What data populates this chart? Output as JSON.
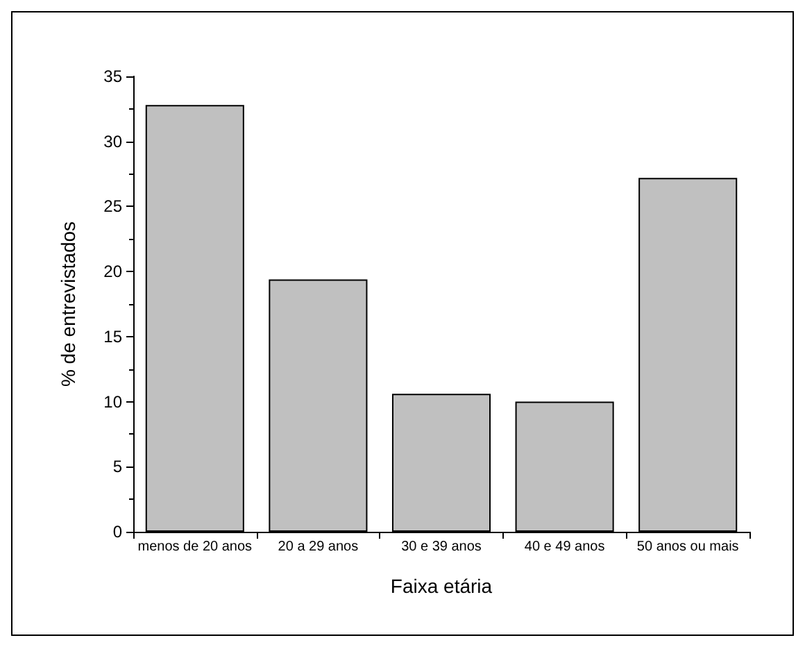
{
  "chart_data": {
    "type": "bar",
    "xlabel": "Faixa etária",
    "ylabel": "% de entrevistados",
    "categories": [
      "menos de 20 anos",
      "20 a 29 anos",
      "30 e 39 anos",
      "40 e 49 anos",
      "50 anos ou mais"
    ],
    "values": [
      32.8,
      19.4,
      10.6,
      10.0,
      27.2
    ],
    "color": "#c0c0c0",
    "ylim": [
      0,
      35
    ],
    "yticks": [
      0,
      5,
      10,
      15,
      20,
      25,
      30,
      35
    ],
    "grid": false
  }
}
